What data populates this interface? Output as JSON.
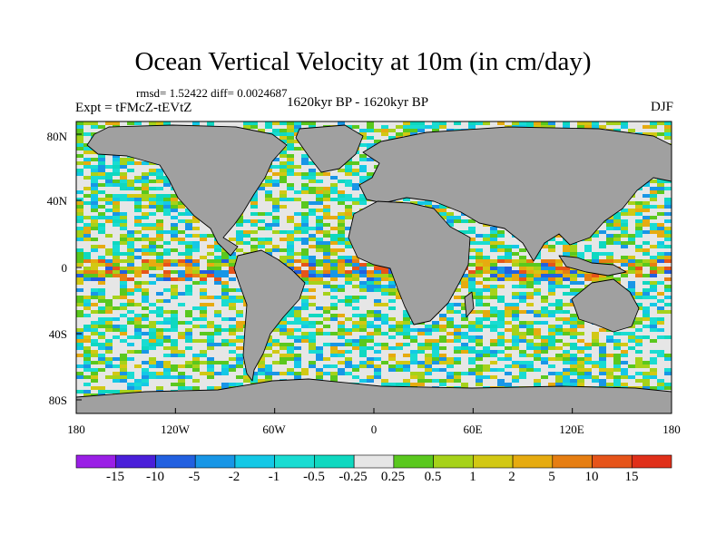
{
  "title": "Ocean Vertical Velocity at 10m (in cm/day)",
  "stats": "rmsd= 1.52422 diff= 0.0024687",
  "experiment": "Expt = tFMcZ-tEVtZ",
  "period": "1620kyr BP - 1620kyr BP",
  "season": "DJF",
  "lat_labels": [
    "80N",
    "40N",
    "0",
    "40S",
    "80S"
  ],
  "lon_labels": [
    "180",
    "120W",
    "60W",
    "0",
    "60E",
    "120E",
    "180"
  ],
  "colorbar": {
    "labels": [
      "-15",
      "-10",
      "-5",
      "-2",
      "-1",
      "-0.5",
      "-0.25",
      "0.25",
      "0.5",
      "1",
      "2",
      "5",
      "10",
      "15"
    ],
    "colors": [
      "#9a1fe6",
      "#4a1fd9",
      "#2260e0",
      "#1896e6",
      "#14c8e6",
      "#19dcd2",
      "#0fd8c0",
      "#e6e6e6",
      "#5ac81e",
      "#a6d21a",
      "#d2c814",
      "#e6ab10",
      "#e67e12",
      "#e6541a",
      "#e0301a"
    ]
  },
  "colors": {
    "land": "#a0a0a0",
    "ocean_base": "#e6e6e6",
    "coast": "#000000"
  }
}
